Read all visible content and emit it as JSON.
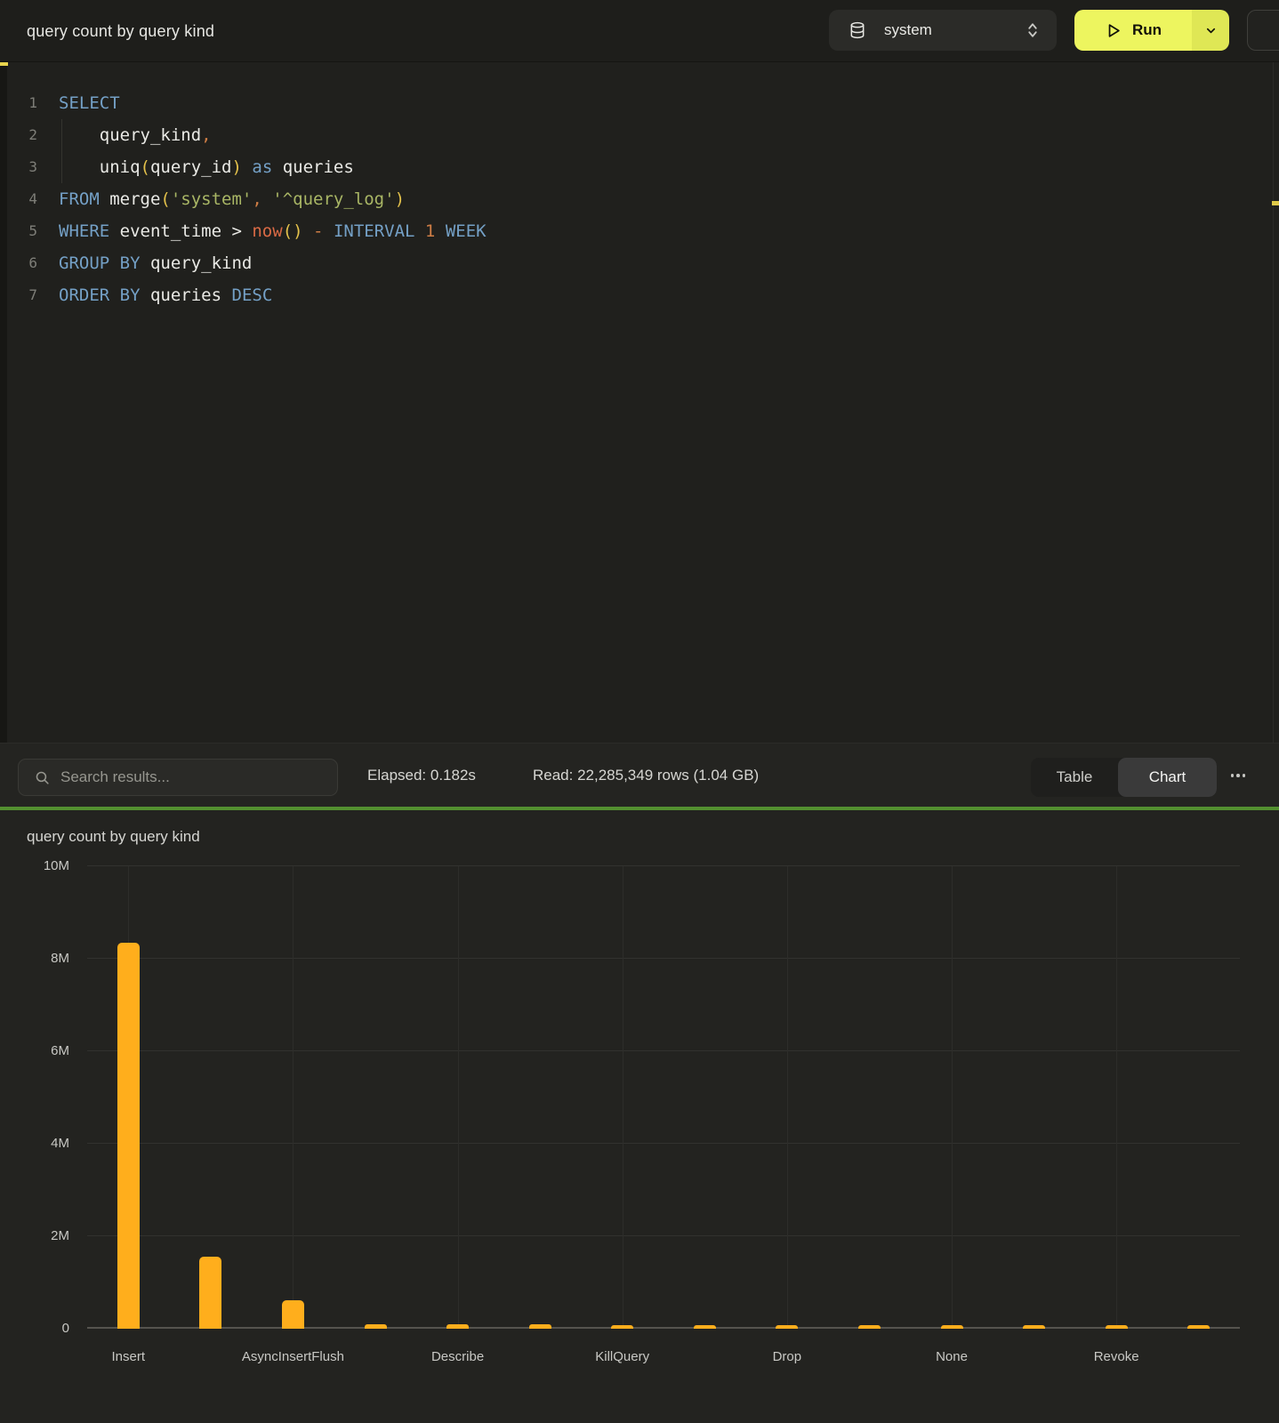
{
  "topbar": {
    "title": "query count by query kind",
    "database_selector": {
      "value": "system"
    },
    "run_button": {
      "label": "Run"
    }
  },
  "editor": {
    "lines": [
      {
        "n": "1",
        "tokens": [
          [
            "kw",
            "SELECT"
          ]
        ]
      },
      {
        "n": "2",
        "tokens": [
          [
            "pl",
            "    query_kind"
          ],
          [
            "or",
            ","
          ]
        ]
      },
      {
        "n": "3",
        "tokens": [
          [
            "pl",
            "    uniq"
          ],
          [
            "yl",
            "("
          ],
          [
            "pl",
            "query_id"
          ],
          [
            "yl",
            ")"
          ],
          [
            "pl",
            " "
          ],
          [
            "kw",
            "as"
          ],
          [
            "pl",
            " queries"
          ]
        ]
      },
      {
        "n": "4",
        "tokens": [
          [
            "kw",
            "FROM"
          ],
          [
            "pl",
            " merge"
          ],
          [
            "yl",
            "("
          ],
          [
            "st",
            "'system'"
          ],
          [
            "or",
            ","
          ],
          [
            "pl",
            " "
          ],
          [
            "st",
            "'^query_log'"
          ],
          [
            "yl",
            ")"
          ]
        ]
      },
      {
        "n": "5",
        "tokens": [
          [
            "kw",
            "WHERE"
          ],
          [
            "pl",
            " event_time > "
          ],
          [
            "rd",
            "now"
          ],
          [
            "yl",
            "()"
          ],
          [
            "pl",
            " "
          ],
          [
            "or",
            "-"
          ],
          [
            "pl",
            " "
          ],
          [
            "kw",
            "INTERVAL"
          ],
          [
            "pl",
            " "
          ],
          [
            "nu",
            "1"
          ],
          [
            "pl",
            " "
          ],
          [
            "kw",
            "WEEK"
          ]
        ]
      },
      {
        "n": "6",
        "tokens": [
          [
            "kw",
            "GROUP"
          ],
          [
            "pl",
            " "
          ],
          [
            "kw",
            "BY"
          ],
          [
            "pl",
            " query_kind"
          ]
        ]
      },
      {
        "n": "7",
        "tokens": [
          [
            "kw",
            "ORDER"
          ],
          [
            "pl",
            " "
          ],
          [
            "kw",
            "BY"
          ],
          [
            "pl",
            " queries "
          ],
          [
            "kw",
            "DESC"
          ]
        ]
      }
    ]
  },
  "results_toolbar": {
    "search_placeholder": "Search results...",
    "elapsed": "Elapsed: 0.182s",
    "read": "Read: 22,285,349 rows (1.04 GB)",
    "view_toggle": {
      "options": [
        "Table",
        "Chart"
      ],
      "selected": "Chart"
    }
  },
  "chart_data": {
    "type": "bar",
    "title": "query count by query kind",
    "categories": [
      "Insert",
      "",
      "AsyncInsertFlush",
      "",
      "Describe",
      "",
      "KillQuery",
      "",
      "Drop",
      "",
      "None",
      "",
      "Revoke",
      ""
    ],
    "values": [
      8350000,
      1550000,
      620000,
      100000,
      95000,
      90000,
      85000,
      80000,
      75000,
      70000,
      65000,
      60000,
      55000,
      52000
    ],
    "xlabel": "",
    "ylabel": "",
    "ylim": [
      0,
      10000000
    ],
    "yticks": [
      0,
      2000000,
      4000000,
      6000000,
      8000000,
      10000000
    ],
    "ytick_labels": [
      "0",
      "2M",
      "4M",
      "6M",
      "8M",
      "10M"
    ],
    "grid": true,
    "legend": "none",
    "bar_color": "#FFAE1C"
  },
  "colors": {
    "accent_yellow": "#EDF55F",
    "bar_orange": "#FFAE1C",
    "divider_green": "#539030",
    "keyword_blue": "#74A0C6",
    "string_olive": "#A9B665"
  }
}
